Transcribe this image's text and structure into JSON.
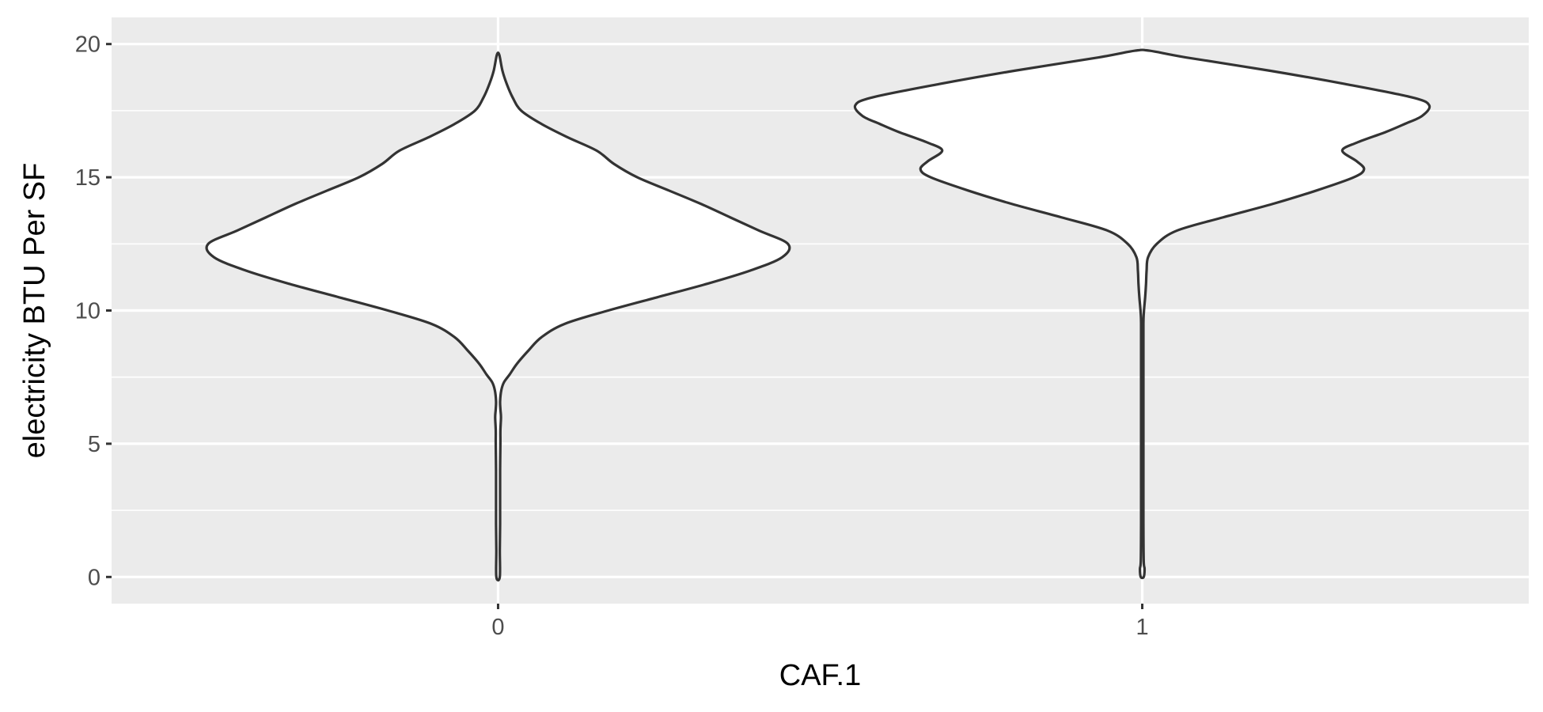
{
  "chart_data": {
    "type": "violin",
    "title": "",
    "xlabel": "CAF.1",
    "ylabel": "electricity BTU Per SF",
    "categories": [
      "0",
      "1"
    ],
    "ylim": [
      -1,
      21
    ],
    "yticks": [
      0,
      5,
      10,
      15,
      20
    ],
    "ytick_labels": [
      "0",
      "5",
      "10",
      "15",
      "20"
    ],
    "grid": true,
    "legend": "none",
    "colors": {
      "panel": "#ebebeb",
      "grid": "#ffffff",
      "outline": "#333333",
      "fill": "#ffffff",
      "tick_text": "#4d4d4d",
      "title_text": "#000000"
    },
    "series": [
      {
        "name": "0",
        "y_min": 0,
        "y_max": 19.6,
        "density_profile": [
          [
            0.0,
            0.006
          ],
          [
            1.0,
            0.006
          ],
          [
            2.0,
            0.007
          ],
          [
            3.0,
            0.007
          ],
          [
            4.0,
            0.007
          ],
          [
            5.0,
            0.008
          ],
          [
            5.5,
            0.008
          ],
          [
            6.0,
            0.01
          ],
          [
            6.3,
            0.008
          ],
          [
            6.6,
            0.007
          ],
          [
            7.0,
            0.011
          ],
          [
            7.3,
            0.02
          ],
          [
            7.6,
            0.04
          ],
          [
            8.0,
            0.065
          ],
          [
            8.5,
            0.105
          ],
          [
            9.0,
            0.15
          ],
          [
            9.5,
            0.23
          ],
          [
            10.0,
            0.38
          ],
          [
            10.5,
            0.55
          ],
          [
            11.0,
            0.72
          ],
          [
            11.5,
            0.87
          ],
          [
            12.0,
            0.98
          ],
          [
            12.5,
            1.0
          ],
          [
            13.0,
            0.9
          ],
          [
            13.5,
            0.8
          ],
          [
            14.0,
            0.7
          ],
          [
            14.5,
            0.59
          ],
          [
            15.0,
            0.48
          ],
          [
            15.5,
            0.4
          ],
          [
            16.0,
            0.34
          ],
          [
            16.5,
            0.24
          ],
          [
            17.0,
            0.15
          ],
          [
            17.5,
            0.08
          ],
          [
            18.0,
            0.05
          ],
          [
            18.5,
            0.03
          ],
          [
            19.0,
            0.015
          ],
          [
            19.6,
            0.004
          ]
        ]
      },
      {
        "name": "1",
        "y_min": 0,
        "y_max": 19.75,
        "density_profile": [
          [
            0.0,
            0.005
          ],
          [
            0.3,
            0.008
          ],
          [
            0.6,
            0.005
          ],
          [
            2.0,
            0.004
          ],
          [
            4.0,
            0.004
          ],
          [
            6.0,
            0.004
          ],
          [
            8.0,
            0.004
          ],
          [
            9.5,
            0.004
          ],
          [
            10.0,
            0.006
          ],
          [
            10.5,
            0.01
          ],
          [
            11.0,
            0.013
          ],
          [
            11.5,
            0.015
          ],
          [
            12.0,
            0.02
          ],
          [
            12.5,
            0.05
          ],
          [
            13.0,
            0.12
          ],
          [
            13.5,
            0.28
          ],
          [
            14.0,
            0.45
          ],
          [
            14.5,
            0.6
          ],
          [
            15.0,
            0.73
          ],
          [
            15.3,
            0.765
          ],
          [
            15.6,
            0.74
          ],
          [
            16.0,
            0.69
          ],
          [
            16.3,
            0.74
          ],
          [
            16.7,
            0.84
          ],
          [
            17.0,
            0.905
          ],
          [
            17.3,
            0.965
          ],
          [
            17.7,
            0.99
          ],
          [
            18.0,
            0.93
          ],
          [
            18.5,
            0.7
          ],
          [
            19.0,
            0.44
          ],
          [
            19.5,
            0.15
          ],
          [
            19.75,
            0.025
          ]
        ]
      }
    ]
  }
}
